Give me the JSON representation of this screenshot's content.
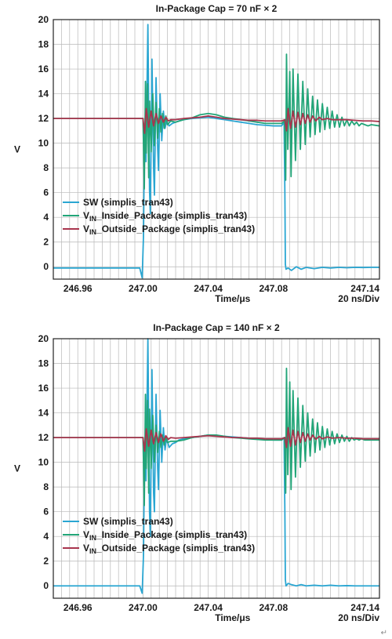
{
  "colors": {
    "sw": "#2aa6d2",
    "vin_inside": "#22a578",
    "vin_outside": "#a8344d",
    "grid": "#b8b8b8",
    "frame": "#222222"
  },
  "corner_mark": "↵",
  "chart_data": [
    {
      "type": "line",
      "title": "In-Package Cap = 70 nF × 2",
      "xlabel": "Time/μs",
      "x_note": "20 ns/Div",
      "ylabel": "V",
      "xlim": [
        246.945,
        247.145
      ],
      "ylim": [
        -1,
        20
      ],
      "x_ticks": [
        246.96,
        247.0,
        247.04,
        247.08,
        247.14
      ],
      "x_tick_labels": [
        "246.96",
        "247.00",
        "247.04",
        "247.08",
        "247.14"
      ],
      "y_ticks": [
        0,
        2,
        4,
        6,
        8,
        10,
        12,
        14,
        16,
        18,
        20
      ],
      "y_tick_labels": [
        "0",
        "2",
        "4",
        "6",
        "8",
        "10",
        "12",
        "14",
        "16",
        "18",
        "20"
      ],
      "grid": true,
      "legend_position": "lower-left",
      "series": [
        {
          "name": "SW (simplis_tran43)",
          "color": "#2aa6d2",
          "x": [
            246.945,
            246.998,
            246.9995,
            247.0003,
            247.001,
            247.0018,
            247.0022,
            247.003,
            247.004,
            247.0045,
            247.0055,
            247.0065,
            247.007,
            247.008,
            247.009,
            247.0095,
            247.0105,
            247.0115,
            247.0125,
            247.0135,
            247.0145,
            247.016,
            247.018,
            247.02,
            247.022,
            247.025,
            247.03,
            247.035,
            247.04,
            247.045,
            247.05,
            247.055,
            247.06,
            247.065,
            247.07,
            247.075,
            247.08,
            247.085,
            247.0865,
            247.087,
            247.0873,
            247.0877,
            247.089,
            247.091,
            247.094,
            247.097,
            247.1,
            247.105,
            247.11,
            247.115,
            247.12,
            247.125,
            247.13,
            247.135,
            247.14,
            247.145
          ],
          "y": [
            -0.1,
            -0.1,
            -0.9,
            2.5,
            11.5,
            8.5,
            12.0,
            19.6,
            6.2,
            4.3,
            16.8,
            8.0,
            5.8,
            15.3,
            9.6,
            7.8,
            14.0,
            10.2,
            12.6,
            11.2,
            11.8,
            11.4,
            11.6,
            11.7,
            11.8,
            11.9,
            12.0,
            12.05,
            12.1,
            12.0,
            11.9,
            11.8,
            11.7,
            11.6,
            11.5,
            11.45,
            11.4,
            11.4,
            11.7,
            6.0,
            0.2,
            -0.2,
            -0.1,
            -0.3,
            0.0,
            -0.2,
            -0.05,
            -0.15,
            -0.05,
            -0.1,
            -0.05,
            -0.08,
            -0.05,
            -0.06,
            -0.05,
            -0.05
          ]
        },
        {
          "name": "VIN_Inside_Package (simplis_tran43)",
          "label_parts": [
            "V",
            "IN",
            "_Inside_Package (simplis_tran43)"
          ],
          "color": "#22a578",
          "x": [
            246.945,
            247.0,
            247.0008,
            247.0015,
            247.002,
            247.0028,
            247.0035,
            247.004,
            247.005,
            247.006,
            247.007,
            247.008,
            247.009,
            247.01,
            247.011,
            247.012,
            247.013,
            247.014,
            247.015,
            247.017,
            247.02,
            247.025,
            247.03,
            247.035,
            247.04,
            247.045,
            247.05,
            247.055,
            247.06,
            247.065,
            247.07,
            247.075,
            247.08,
            247.085,
            247.0868,
            247.0875,
            247.088,
            247.0888,
            247.09,
            247.0908,
            247.092,
            247.0935,
            247.095,
            247.0965,
            247.098,
            247.0995,
            247.101,
            247.1025,
            247.104,
            247.1055,
            247.107,
            247.1085,
            247.11,
            247.1115,
            247.113,
            247.1145,
            247.116,
            247.1175,
            247.119,
            247.1205,
            247.122,
            247.1235,
            247.125,
            247.1265,
            247.128,
            247.1295,
            247.131,
            247.1325,
            247.134,
            247.136,
            247.138,
            247.14,
            247.145
          ],
          "y": [
            12.0,
            12.0,
            6.3,
            15.0,
            9.2,
            14.8,
            7.2,
            13.4,
            9.3,
            14.0,
            9.8,
            13.3,
            10.4,
            12.8,
            10.9,
            12.4,
            11.2,
            12.2,
            11.5,
            11.8,
            11.7,
            11.9,
            12.05,
            12.3,
            12.4,
            12.3,
            12.1,
            12.0,
            11.9,
            11.8,
            11.7,
            11.6,
            11.6,
            11.6,
            11.8,
            7.0,
            17.2,
            9.5,
            15.8,
            7.3,
            16.0,
            8.6,
            15.6,
            9.5,
            15.0,
            9.9,
            14.4,
            10.5,
            13.8,
            10.7,
            13.5,
            10.9,
            13.2,
            11.1,
            12.9,
            11.2,
            12.6,
            11.3,
            12.3,
            11.3,
            12.1,
            11.4,
            11.9,
            11.4,
            11.8,
            11.5,
            11.7,
            11.4,
            11.6,
            11.5,
            11.4,
            11.5,
            11.4
          ]
        },
        {
          "name": "VIN_Outside_Package (simplis_tran43)",
          "label_parts": [
            "V",
            "IN",
            "_Outside_Package (simplis_tran43)"
          ],
          "color": "#a8344d",
          "x": [
            246.945,
            247.0,
            247.001,
            247.002,
            247.0035,
            247.005,
            247.0065,
            247.008,
            247.0095,
            247.011,
            247.0125,
            247.014,
            247.0155,
            247.017,
            247.02,
            247.025,
            247.03,
            247.035,
            247.04,
            247.045,
            247.05,
            247.055,
            247.06,
            247.065,
            247.07,
            247.075,
            247.08,
            247.085,
            247.087,
            247.088,
            247.089,
            247.0905,
            247.092,
            247.0935,
            247.095,
            247.0965,
            247.098,
            247.0995,
            247.101,
            247.1025,
            247.104,
            247.106,
            247.108,
            247.11,
            247.113,
            247.116,
            247.12,
            247.125,
            247.13,
            247.135,
            247.14,
            247.145
          ],
          "y": [
            12.0,
            12.0,
            10.8,
            12.8,
            11.3,
            12.6,
            11.4,
            12.4,
            11.6,
            12.2,
            11.7,
            12.1,
            11.8,
            11.9,
            11.9,
            12.0,
            12.05,
            12.1,
            12.2,
            12.1,
            12.0,
            11.95,
            11.9,
            11.85,
            11.85,
            11.8,
            11.8,
            11.8,
            11.9,
            11.0,
            12.8,
            11.2,
            12.6,
            11.3,
            12.5,
            11.5,
            12.4,
            11.6,
            12.3,
            11.7,
            12.2,
            11.8,
            12.1,
            11.9,
            12.0,
            11.9,
            11.9,
            11.9,
            11.85,
            11.8,
            11.8,
            11.75
          ]
        }
      ]
    },
    {
      "type": "line",
      "title": "In-Package Cap = 140 nF × 2",
      "xlabel": "Time/μs",
      "x_note": "20 ns/Div",
      "ylabel": "V",
      "xlim": [
        246.945,
        247.145
      ],
      "ylim": [
        -1,
        20
      ],
      "x_ticks": [
        246.96,
        247.0,
        247.04,
        247.08,
        247.14
      ],
      "x_tick_labels": [
        "246.96",
        "247.00",
        "247.04",
        "247.08",
        "247.14"
      ],
      "y_ticks": [
        0,
        2,
        4,
        6,
        8,
        10,
        12,
        14,
        16,
        18,
        20
      ],
      "y_tick_labels": [
        "0",
        "2",
        "4",
        "6",
        "8",
        "10",
        "12",
        "14",
        "16",
        "18",
        "20"
      ],
      "grid": true,
      "legend_position": "lower-left",
      "series": [
        {
          "name": "SW (simplis_tran43)",
          "color": "#2aa6d2",
          "x": [
            246.945,
            246.998,
            246.9995,
            247.0003,
            247.001,
            247.0018,
            247.0022,
            247.003,
            247.004,
            247.0045,
            247.0055,
            247.0065,
            247.007,
            247.008,
            247.009,
            247.0095,
            247.0105,
            247.0115,
            247.0125,
            247.0135,
            247.0145,
            247.016,
            247.018,
            247.02,
            247.022,
            247.025,
            247.03,
            247.035,
            247.04,
            247.045,
            247.05,
            247.055,
            247.06,
            247.065,
            247.07,
            247.075,
            247.08,
            247.085,
            247.0865,
            247.087,
            247.0873,
            247.0877,
            247.089,
            247.091,
            247.094,
            247.097,
            247.1,
            247.105,
            247.11,
            247.115,
            247.12,
            247.125,
            247.13,
            247.135,
            247.14,
            247.145
          ],
          "y": [
            0.0,
            0.0,
            -0.6,
            2.5,
            11.5,
            8.5,
            12.0,
            20.0,
            6.0,
            4.0,
            17.5,
            7.5,
            6.0,
            15.5,
            9.5,
            7.8,
            14.2,
            10.0,
            12.8,
            11.0,
            12.0,
            11.2,
            11.5,
            11.6,
            11.8,
            11.9,
            12.0,
            12.1,
            12.2,
            12.15,
            12.1,
            12.05,
            12.0,
            11.95,
            11.9,
            11.85,
            11.8,
            11.8,
            12.0,
            6.0,
            0.5,
            0.0,
            0.2,
            0.1,
            0.0,
            0.1,
            0.0,
            0.05,
            0.0,
            0.05,
            0.0,
            0.02,
            0.0,
            0.0,
            0.0,
            0.0
          ]
        },
        {
          "name": "VIN_Inside_Package (simplis_tran43)",
          "label_parts": [
            "V",
            "IN",
            "_Inside_Package (simplis_tran43)"
          ],
          "color": "#22a578",
          "x": [
            246.945,
            247.0,
            247.0008,
            247.0015,
            247.002,
            247.0028,
            247.0035,
            247.004,
            247.005,
            247.006,
            247.007,
            247.008,
            247.009,
            247.01,
            247.011,
            247.012,
            247.013,
            247.014,
            247.015,
            247.017,
            247.02,
            247.025,
            247.03,
            247.035,
            247.04,
            247.045,
            247.05,
            247.055,
            247.06,
            247.065,
            247.07,
            247.075,
            247.08,
            247.085,
            247.0868,
            247.0875,
            247.088,
            247.0888,
            247.09,
            247.0908,
            247.092,
            247.0935,
            247.095,
            247.0965,
            247.098,
            247.0995,
            247.101,
            247.1025,
            247.104,
            247.1055,
            247.107,
            247.1085,
            247.11,
            247.1115,
            247.113,
            247.1145,
            247.116,
            247.1175,
            247.119,
            247.1205,
            247.122,
            247.1235,
            247.125,
            247.1265,
            247.128,
            247.1295,
            247.131,
            247.1325,
            247.134,
            247.136,
            247.138,
            247.14,
            247.145
          ],
          "y": [
            12.0,
            12.0,
            6.5,
            15.5,
            9.5,
            15.0,
            7.5,
            14.3,
            9.5,
            13.8,
            10.0,
            13.0,
            10.8,
            12.5,
            11.2,
            12.2,
            11.4,
            12.0,
            11.6,
            11.7,
            11.7,
            11.8,
            12.0,
            12.1,
            12.2,
            12.2,
            12.1,
            12.0,
            11.95,
            11.9,
            11.85,
            11.8,
            11.8,
            11.8,
            12.0,
            7.5,
            17.6,
            9.0,
            16.5,
            7.8,
            15.8,
            8.8,
            15.2,
            9.6,
            14.6,
            10.1,
            14.0,
            10.5,
            13.5,
            10.8,
            13.2,
            11.0,
            12.9,
            11.2,
            12.7,
            11.4,
            12.5,
            11.5,
            12.3,
            11.6,
            12.2,
            11.7,
            12.1,
            11.7,
            12.0,
            11.8,
            11.9,
            11.8,
            11.9,
            11.8,
            11.8,
            11.8,
            11.8
          ]
        },
        {
          "name": "VIN_Outside_Package (simplis_tran43)",
          "label_parts": [
            "V",
            "IN",
            "_Outside_Package (simplis_tran43)"
          ],
          "color": "#a8344d",
          "x": [
            246.945,
            247.0,
            247.001,
            247.002,
            247.0035,
            247.005,
            247.0065,
            247.008,
            247.0095,
            247.011,
            247.0125,
            247.014,
            247.0155,
            247.017,
            247.02,
            247.025,
            247.03,
            247.035,
            247.04,
            247.045,
            247.05,
            247.055,
            247.06,
            247.065,
            247.07,
            247.075,
            247.08,
            247.085,
            247.087,
            247.088,
            247.089,
            247.0905,
            247.092,
            247.0935,
            247.095,
            247.0965,
            247.098,
            247.0995,
            247.101,
            247.1025,
            247.104,
            247.106,
            247.108,
            247.11,
            247.113,
            247.116,
            247.12,
            247.125,
            247.13,
            247.135,
            247.14,
            247.145
          ],
          "y": [
            12.0,
            12.0,
            10.9,
            12.7,
            11.3,
            12.6,
            11.5,
            12.4,
            11.6,
            12.3,
            11.7,
            12.15,
            11.85,
            12.0,
            11.95,
            12.0,
            12.05,
            12.1,
            12.15,
            12.1,
            12.05,
            12.0,
            12.0,
            11.95,
            11.95,
            11.9,
            11.9,
            11.9,
            12.0,
            11.2,
            12.8,
            11.3,
            12.6,
            11.4,
            12.5,
            11.6,
            12.4,
            11.7,
            12.3,
            11.8,
            12.2,
            11.85,
            12.1,
            11.9,
            12.05,
            11.95,
            12.0,
            11.95,
            11.95,
            11.9,
            11.9,
            11.9
          ]
        }
      ]
    }
  ]
}
